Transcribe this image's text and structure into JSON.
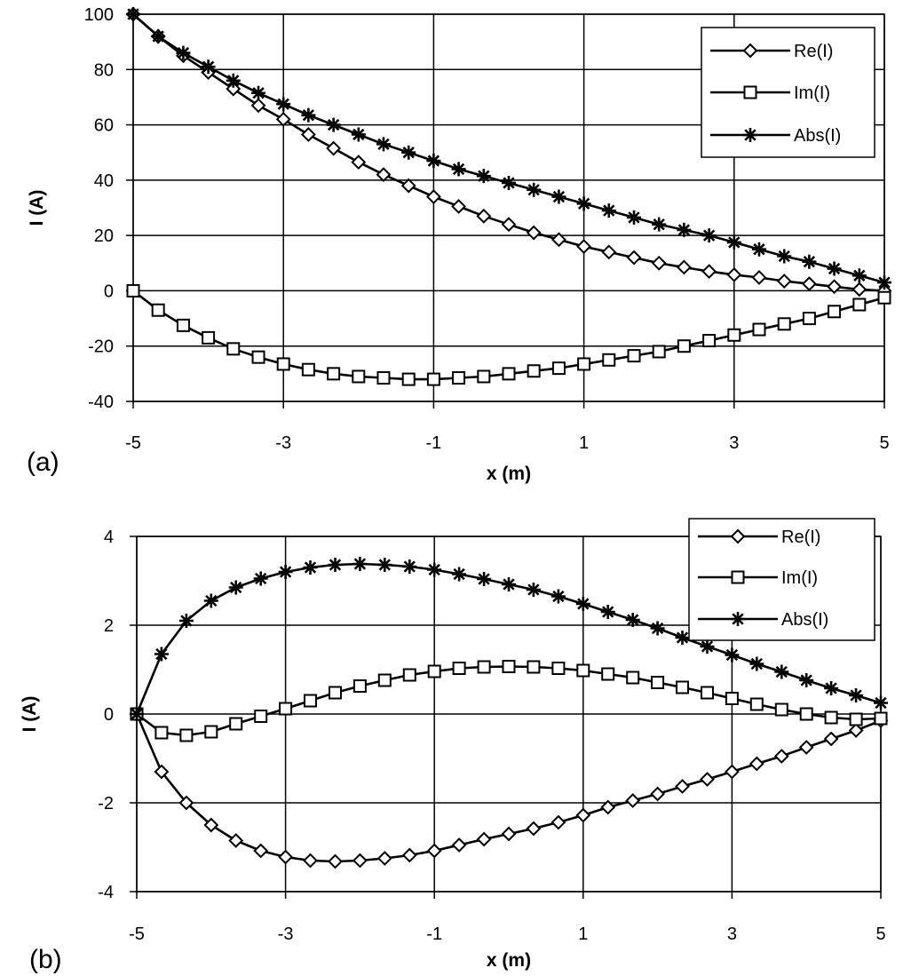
{
  "chart_data": [
    {
      "panel_label": "(a)",
      "type": "line",
      "xlabel": "x (m)",
      "ylabel": "I (A)",
      "xlim": [
        -5,
        5
      ],
      "ylim": [
        -40,
        100
      ],
      "xticks": [
        -5,
        -3,
        -1,
        1,
        3,
        5
      ],
      "yticks": [
        -40,
        -20,
        0,
        20,
        40,
        60,
        80,
        100
      ],
      "grid": true,
      "legend_position": "top-right",
      "x": [
        -5,
        -4.667,
        -4.333,
        -4,
        -3.667,
        -3.333,
        -3,
        -2.667,
        -2.333,
        -2,
        -1.667,
        -1.333,
        -1,
        -0.667,
        -0.333,
        0,
        0.333,
        0.667,
        1,
        1.333,
        1.667,
        2,
        2.333,
        2.667,
        3,
        3.333,
        3.667,
        4,
        4.333,
        4.667,
        5
      ],
      "series": [
        {
          "name": "Re(I)",
          "marker": "diamond",
          "values": [
            100,
            92,
            85,
            79,
            73,
            67,
            62,
            56.5,
            51.5,
            46.5,
            42,
            38,
            34,
            30.5,
            27,
            24,
            21,
            18.5,
            16,
            14,
            12,
            10,
            8.5,
            7,
            5.8,
            4.8,
            3.5,
            2.5,
            1.5,
            0.5,
            0
          ]
        },
        {
          "name": "Im(I)",
          "marker": "square",
          "values": [
            0,
            -7,
            -12.5,
            -17,
            -21,
            -24,
            -26.5,
            -28.5,
            -30,
            -31,
            -31.5,
            -32,
            -32,
            -31.5,
            -31,
            -30,
            -29,
            -28,
            -26.5,
            -25,
            -23.5,
            -22,
            -20,
            -18,
            -16,
            -14,
            -12,
            -10,
            -7.5,
            -5,
            -2.5
          ]
        },
        {
          "name": "Abs(I)",
          "marker": "star",
          "values": [
            100,
            92,
            86,
            81,
            76,
            71.5,
            67.5,
            63.5,
            60,
            56.5,
            53,
            50,
            47,
            44,
            41.5,
            39,
            36.5,
            34,
            31.5,
            29,
            26.5,
            24,
            22,
            20,
            17.5,
            15,
            12.5,
            10.5,
            8,
            5.5,
            3
          ]
        }
      ]
    },
    {
      "panel_label": "(b)",
      "type": "line",
      "xlabel": "x (m)",
      "ylabel": "I (A)",
      "xlim": [
        -5,
        5
      ],
      "ylim": [
        -4,
        4
      ],
      "xticks": [
        -5,
        -3,
        -1,
        1,
        3,
        5
      ],
      "yticks": [
        -4,
        -2,
        0,
        2,
        4
      ],
      "grid": true,
      "legend_position": "top-right",
      "x": [
        -5,
        -4.667,
        -4.333,
        -4,
        -3.667,
        -3.333,
        -3,
        -2.667,
        -2.333,
        -2,
        -1.667,
        -1.333,
        -1,
        -0.667,
        -0.333,
        0,
        0.333,
        0.667,
        1,
        1.333,
        1.667,
        2,
        2.333,
        2.667,
        3,
        3.333,
        3.667,
        4,
        4.333,
        4.667,
        5
      ],
      "series": [
        {
          "name": "Re(I)",
          "marker": "diamond",
          "values": [
            0,
            -1.3,
            -2.0,
            -2.5,
            -2.85,
            -3.08,
            -3.22,
            -3.3,
            -3.32,
            -3.3,
            -3.25,
            -3.18,
            -3.08,
            -2.95,
            -2.82,
            -2.7,
            -2.58,
            -2.44,
            -2.28,
            -2.1,
            -1.95,
            -1.8,
            -1.63,
            -1.47,
            -1.3,
            -1.12,
            -0.95,
            -0.75,
            -0.56,
            -0.37,
            -0.15
          ]
        },
        {
          "name": "Im(I)",
          "marker": "square",
          "values": [
            0,
            -0.42,
            -0.48,
            -0.4,
            -0.22,
            -0.05,
            0.12,
            0.3,
            0.48,
            0.63,
            0.76,
            0.88,
            0.96,
            1.03,
            1.06,
            1.07,
            1.06,
            1.03,
            0.98,
            0.9,
            0.82,
            0.71,
            0.6,
            0.48,
            0.35,
            0.22,
            0.1,
            0.0,
            -0.08,
            -0.12,
            -0.1
          ]
        },
        {
          "name": "Abs(I)",
          "marker": "star",
          "values": [
            0,
            1.35,
            2.1,
            2.55,
            2.85,
            3.05,
            3.2,
            3.3,
            3.36,
            3.38,
            3.36,
            3.32,
            3.25,
            3.15,
            3.04,
            2.92,
            2.8,
            2.65,
            2.48,
            2.3,
            2.12,
            1.93,
            1.72,
            1.52,
            1.33,
            1.13,
            0.95,
            0.76,
            0.58,
            0.42,
            0.25
          ]
        }
      ]
    }
  ]
}
